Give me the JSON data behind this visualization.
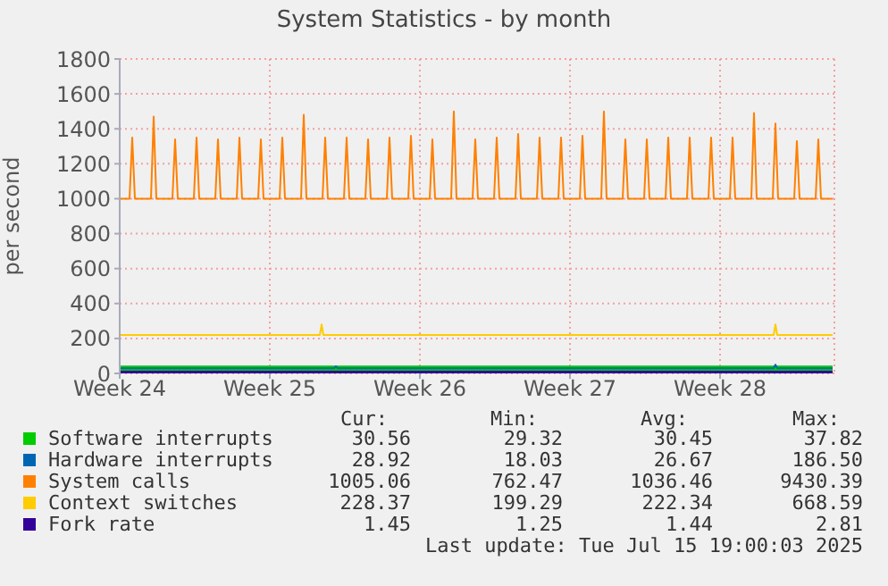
{
  "chart_data": {
    "type": "line",
    "title": "System Statistics - by month",
    "ylabel": "per second",
    "xlim": [
      "2025-06-09",
      "2025-07-12T08:00"
    ],
    "xticks": [
      {
        "value": "2025-06-09",
        "label": "Week 24"
      },
      {
        "value": "2025-06-16",
        "label": "Week 25"
      },
      {
        "value": "2025-06-23",
        "label": "Week 26"
      },
      {
        "value": "2025-06-30",
        "label": "Week 27"
      },
      {
        "value": "2025-07-07",
        "label": "Week 28"
      }
    ],
    "ylim": [
      0,
      1800
    ],
    "yticks": [
      0,
      200,
      400,
      600,
      800,
      1000,
      1200,
      1400,
      1600,
      1800
    ],
    "grid": true,
    "legend": "bottom",
    "marker": "none",
    "line_style": "solid",
    "series": [
      {
        "name": "Software interrupts",
        "color": "#00cc00",
        "x": [
          "2025-06-09",
          "2025-07-12T06:00"
        ],
        "values": [
          30,
          30
        ]
      },
      {
        "name": "Hardware interrupts",
        "color": "#0066b3",
        "x": [
          "2025-06-09",
          "2025-06-19",
          "2025-06-19T02:00",
          "2025-06-19T04:00",
          "2025-07-09T12:00",
          "2025-07-09T14:00",
          "2025-07-09T16:00",
          "2025-07-12T06:00"
        ],
        "values": [
          30,
          30,
          40,
          30,
          30,
          50,
          30,
          30
        ]
      },
      {
        "name": "System calls",
        "color": "#ff8000",
        "x": [
          "2025-06-09",
          "2025-06-09T11:00",
          "2025-06-09T14:00",
          "2025-06-09T17:00",
          "2025-06-10T11:00",
          "2025-06-10T14:00",
          "2025-06-10T17:00",
          "2025-06-11T11:00",
          "2025-06-11T14:00",
          "2025-06-11T17:00",
          "2025-06-12T11:00",
          "2025-06-12T14:00",
          "2025-06-12T17:00",
          "2025-06-13T11:00",
          "2025-06-13T14:00",
          "2025-06-13T17:00",
          "2025-06-14T11:00",
          "2025-06-14T14:00",
          "2025-06-14T17:00",
          "2025-06-15T11:00",
          "2025-06-15T14:00",
          "2025-06-15T17:00",
          "2025-06-16T11:00",
          "2025-06-16T14:00",
          "2025-06-16T17:00",
          "2025-06-17T11:00",
          "2025-06-17T14:00",
          "2025-06-17T17:00",
          "2025-06-18T11:00",
          "2025-06-18T14:00",
          "2025-06-18T17:00",
          "2025-06-19T11:00",
          "2025-06-19T14:00",
          "2025-06-19T17:00",
          "2025-06-20T11:00",
          "2025-06-20T14:00",
          "2025-06-20T17:00",
          "2025-06-21T11:00",
          "2025-06-21T14:00",
          "2025-06-21T17:00",
          "2025-06-22T11:00",
          "2025-06-22T14:00",
          "2025-06-22T17:00",
          "2025-06-23T11:00",
          "2025-06-23T14:00",
          "2025-06-23T17:00",
          "2025-06-24T11:00",
          "2025-06-24T14:00",
          "2025-06-24T17:00",
          "2025-06-25T11:00",
          "2025-06-25T14:00",
          "2025-06-25T17:00",
          "2025-06-26T11:00",
          "2025-06-26T14:00",
          "2025-06-26T17:00",
          "2025-06-27T11:00",
          "2025-06-27T14:00",
          "2025-06-27T17:00",
          "2025-06-28T11:00",
          "2025-06-28T14:00",
          "2025-06-28T17:00",
          "2025-06-29T11:00",
          "2025-06-29T14:00",
          "2025-06-29T17:00",
          "2025-06-30T11:00",
          "2025-06-30T14:00",
          "2025-06-30T17:00",
          "2025-07-01T11:00",
          "2025-07-01T14:00",
          "2025-07-01T17:00",
          "2025-07-02T11:00",
          "2025-07-02T14:00",
          "2025-07-02T17:00",
          "2025-07-03T11:00",
          "2025-07-03T14:00",
          "2025-07-03T17:00",
          "2025-07-04T11:00",
          "2025-07-04T14:00",
          "2025-07-04T17:00",
          "2025-07-05T11:00",
          "2025-07-05T14:00",
          "2025-07-05T17:00",
          "2025-07-06T11:00",
          "2025-07-06T14:00",
          "2025-07-06T17:00",
          "2025-07-07T11:00",
          "2025-07-07T14:00",
          "2025-07-07T17:00",
          "2025-07-08T11:00",
          "2025-07-08T14:00",
          "2025-07-08T17:00",
          "2025-07-09T11:00",
          "2025-07-09T14:00",
          "2025-07-09T17:00",
          "2025-07-10T11:00",
          "2025-07-10T14:00",
          "2025-07-10T17:00",
          "2025-07-11T11:00",
          "2025-07-11T14:00",
          "2025-07-11T17:00",
          "2025-07-12T06:00"
        ],
        "values": [
          1000,
          1000,
          1350,
          1000,
          1000,
          1470,
          1000,
          1000,
          1340,
          1000,
          1000,
          1350,
          1000,
          1000,
          1340,
          1000,
          1000,
          1350,
          1000,
          1000,
          1340,
          1000,
          1000,
          1350,
          1000,
          1000,
          1480,
          1000,
          1000,
          1350,
          1000,
          1000,
          1350,
          1000,
          1000,
          1340,
          1000,
          1000,
          1350,
          1000,
          1000,
          1360,
          1000,
          1000,
          1340,
          1000,
          1000,
          1500,
          1000,
          1000,
          1340,
          1000,
          1000,
          1350,
          1000,
          1000,
          1370,
          1000,
          1000,
          1350,
          1000,
          1000,
          1350,
          1000,
          1000,
          1360,
          1000,
          1000,
          1500,
          1000,
          1000,
          1340,
          1000,
          1000,
          1340,
          1000,
          1000,
          1350,
          1000,
          1000,
          1350,
          1000,
          1000,
          1350,
          1000,
          1000,
          1350,
          1000,
          1000,
          1490,
          1000,
          1000,
          1430,
          1000,
          1000,
          1330,
          1000,
          1000,
          1340,
          1000,
          1000
        ]
      },
      {
        "name": "Context switches",
        "color": "#ffcc00",
        "x": [
          "2025-06-09",
          "2025-06-14",
          "2025-06-18T08:00",
          "2025-06-18T10:00",
          "2025-06-18T12:00",
          "2025-06-24",
          "2025-06-29",
          "2025-07-09T12:00",
          "2025-07-09T14:00",
          "2025-07-09T16:00",
          "2025-07-12T06:00"
        ],
        "values": [
          220,
          220,
          220,
          280,
          220,
          220,
          220,
          220,
          280,
          220,
          220
        ]
      },
      {
        "name": "Fork rate",
        "color": "#330099",
        "x": [
          "2025-06-09",
          "2025-07-12T06:00"
        ],
        "values": [
          0,
          0
        ]
      }
    ],
    "annotations": [
      "Cur:",
      "Min:",
      "Avg:",
      "Max:",
      "30.56",
      "29.32",
      "30.45",
      "37.82",
      "28.92",
      "18.03",
      "26.67",
      "186.50",
      "1005.06",
      "762.47",
      "1036.46",
      "9430.39",
      "228.37",
      "199.29",
      "222.34",
      "668.59",
      "1.45",
      "1.25",
      "1.44",
      "2.81",
      "Last update: Tue Jul 15 19:00:03 2025"
    ]
  }
}
